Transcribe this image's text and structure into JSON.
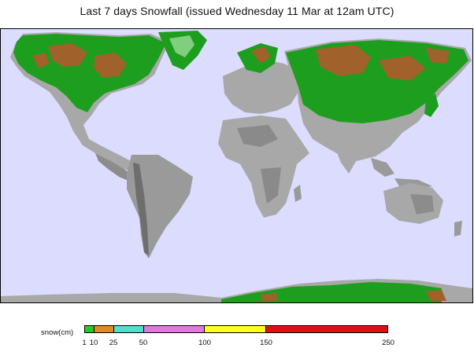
{
  "title": "Last 7 days Snowfall (issued Wednesday 11 Mar at 12am UTC)",
  "colors": {
    "ocean": "#dcdcff",
    "land": "#a8a8a8",
    "land_dark": "#6e6e6e",
    "snow_green": "#1e9e1e",
    "snow_brown": "#a0612a"
  },
  "legend": {
    "label": "snow(cm)",
    "segments": [
      {
        "from": 1,
        "to": 10,
        "color": "#22cc22"
      },
      {
        "from": 10,
        "to": 25,
        "color": "#e08a2a"
      },
      {
        "from": 25,
        "to": 50,
        "color": "#55dccc"
      },
      {
        "from": 50,
        "to": 100,
        "color": "#e078e0"
      },
      {
        "from": 100,
        "to": 150,
        "color": "#ffff22"
      },
      {
        "from": 150,
        "to": 250,
        "color": "#dd1111"
      }
    ],
    "ticks": [
      "1",
      "10",
      "25",
      "50",
      "100",
      "150",
      "250"
    ]
  }
}
